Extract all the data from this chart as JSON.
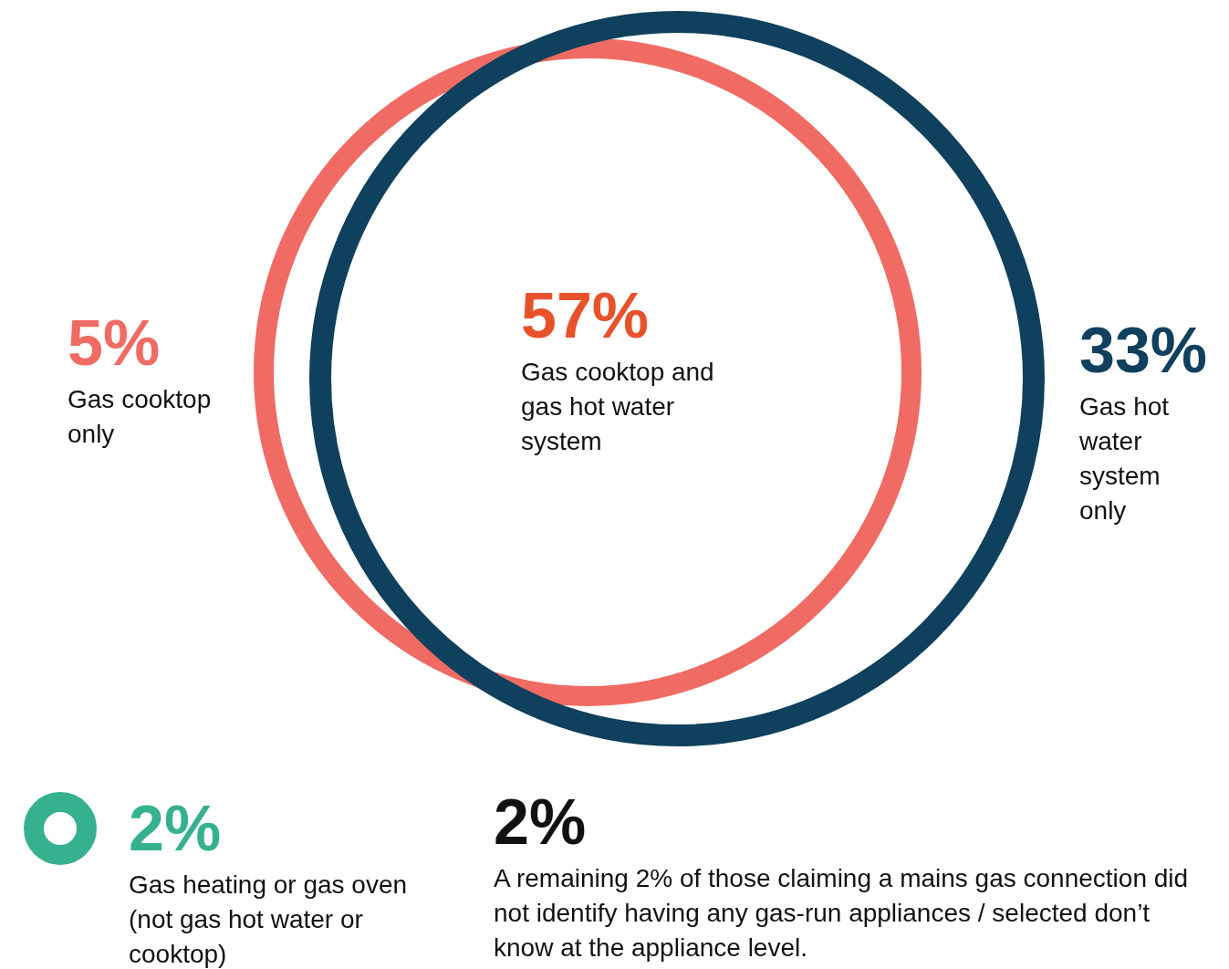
{
  "chart_data": {
    "type": "other",
    "categories": [
      "Gas cooktop only",
      "Gas cooktop and gas hot water system",
      "Gas hot water system only",
      "Gas heating or gas oven (not gas hot water or cooktop)",
      "A remaining 2% of those claiming a mains gas connection did not identify having any gas-run appliances / selected don’t know at the appliance level."
    ],
    "values": [
      5,
      57,
      33,
      2,
      2
    ],
    "value_labels": [
      "5%",
      "57%",
      "33%",
      "2%",
      "2%"
    ],
    "colors": [
      "#ef6b63",
      "#e8522b",
      "#0f405d",
      "#36b18f",
      "#111111"
    ]
  }
}
